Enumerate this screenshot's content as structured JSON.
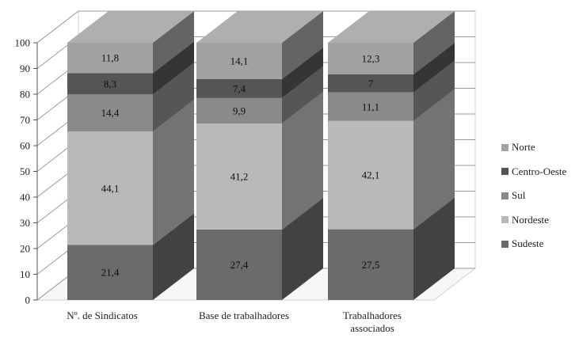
{
  "chart_data": {
    "type": "bar",
    "stacked": true,
    "three_d": true,
    "categories": [
      "Nº. de Sindicatos",
      "Base de trabalhadores",
      "Trabalhadores associados"
    ],
    "series": [
      {
        "name": "Sudeste",
        "values": [
          21.4,
          27.4,
          27.5
        ],
        "color": "#6b6b6b"
      },
      {
        "name": "Nordeste",
        "values": [
          44.1,
          41.2,
          42.1
        ],
        "color": "#b9b9b9"
      },
      {
        "name": "Sul",
        "values": [
          14.4,
          9.9,
          11.1
        ],
        "color": "#8a8a8a"
      },
      {
        "name": "Centro-Oeste",
        "values": [
          8.3,
          7.4,
          7.0
        ],
        "color": "#555555"
      },
      {
        "name": "Norte",
        "values": [
          11.8,
          14.1,
          12.3
        ],
        "color": "#a2a2a2"
      }
    ],
    "y_ticks": [
      "0",
      "10",
      "20",
      "30",
      "40",
      "50",
      "60",
      "70",
      "80",
      "90",
      "100"
    ],
    "ylim": [
      0,
      100
    ],
    "legend_order": [
      "Norte",
      "Centro-Oeste",
      "Sul",
      "Nordeste",
      "Sudeste"
    ],
    "legend_position": "right",
    "grid": true
  }
}
